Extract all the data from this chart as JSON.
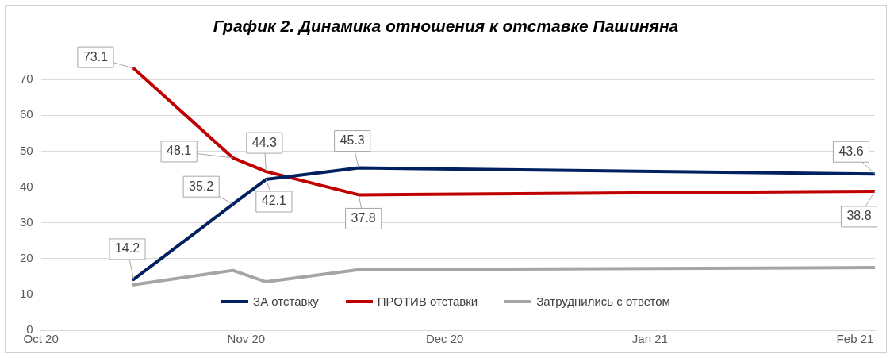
{
  "chart_data": {
    "type": "line",
    "title": "График 2. Динамика отношения к отставке Пашиняна",
    "x": [
      "2020-10-15",
      "2020-10-30",
      "2020-11-04",
      "2020-11-18",
      "2021-02-04"
    ],
    "series": [
      {
        "name": "ЗА отставку",
        "color": "#002060",
        "values": [
          14.2,
          35.2,
          42.1,
          45.3,
          43.6
        ],
        "value_labels": [
          "14.2",
          "35.2",
          "42.1",
          "45.3",
          "43.6"
        ]
      },
      {
        "name": "ПРОТИВ отставки",
        "color": "#c00000",
        "values": [
          73.1,
          48.1,
          44.3,
          37.8,
          38.8
        ],
        "value_labels": [
          "73.1",
          "48.1",
          "44.3",
          "37.8",
          "38.8"
        ]
      },
      {
        "name": "Затруднились с ответом",
        "color": "#a5a5a5",
        "values": [
          12.7,
          16.7,
          13.5,
          16.9,
          17.5
        ]
      }
    ],
    "xlim": [
      "2020-10-01",
      "2021-02-04"
    ],
    "xticks": [
      {
        "value": "2020-10-01",
        "label": "Oct 20"
      },
      {
        "value": "2020-11-01",
        "label": "Nov 20"
      },
      {
        "value": "2020-12-01",
        "label": "Dec 20"
      },
      {
        "value": "2021-01-01",
        "label": "Jan 21"
      },
      {
        "value": "2021-02-01",
        "label": "Feb 21"
      }
    ],
    "ylim": [
      0,
      80
    ],
    "yticks": [
      0,
      10,
      20,
      30,
      40,
      50,
      60,
      70,
      {
        "value": 80,
        "label": null
      }
    ],
    "grid": "y",
    "legend": "bottom",
    "marker": "none",
    "line_style": "solid"
  }
}
